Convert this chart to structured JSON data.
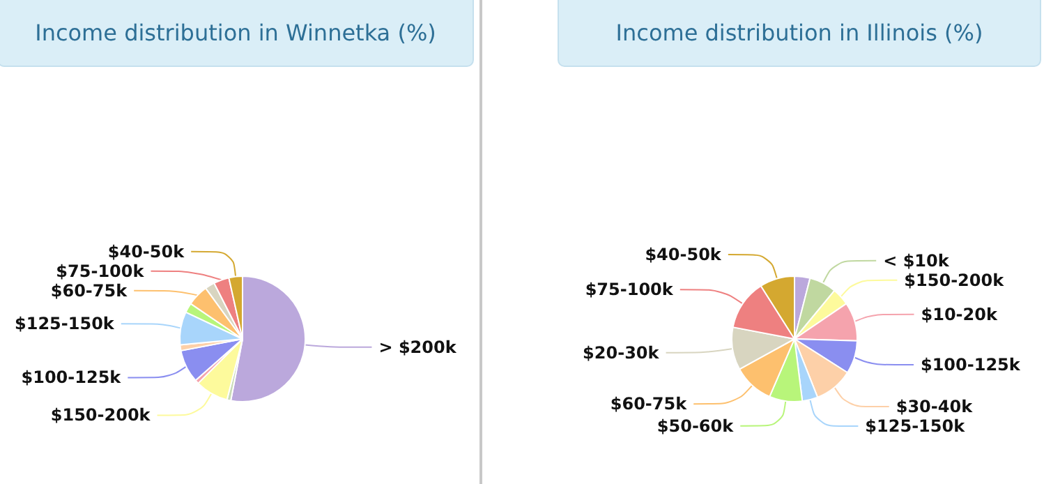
{
  "chart_data": [
    {
      "type": "pie",
      "title": "Income distribution in Winnetka (%)",
      "categories": [
        "> $200k",
        null,
        "$150-200k",
        null,
        "$100-125k",
        null,
        "$125-150k",
        null,
        "$60-75k",
        null,
        "$75-100k",
        "$40-50k"
      ],
      "values": [
        53,
        1,
        8.5,
        1,
        8.5,
        1.5,
        8.5,
        2.5,
        5.5,
        2.5,
        4,
        3.5
      ],
      "colors": [
        "#bba8dc",
        "#c9dbb7",
        "#fdfa9c",
        "#f5a3ad",
        "#8a8ef0",
        "#fdd0a8",
        "#a8d5fb",
        "#b8f57a",
        "#fdc06e",
        "#d8d5c0",
        "#ee8080",
        "#d4a830"
      ]
    },
    {
      "type": "pie",
      "title": "Income distribution in Illinois (%)",
      "categories": [
        null,
        "< $10k",
        "$150-200k",
        "$10-20k",
        "$100-125k",
        "$30-40k",
        "$125-150k",
        "$50-60k",
        "$60-75k",
        "$20-30k",
        "$75-100k",
        "$40-50k"
      ],
      "values": [
        4,
        7,
        4.5,
        10,
        8.5,
        10,
        4,
        8.5,
        10.5,
        11,
        13,
        9
      ],
      "colors": [
        "#bba8dc",
        "#c0d8a0",
        "#fdfa9c",
        "#f5a3ad",
        "#8a8ef0",
        "#fdd0a8",
        "#a8d5fb",
        "#b8f57a",
        "#fdc06e",
        "#d8d5c0",
        "#ee8080",
        "#d4a830"
      ]
    }
  ]
}
